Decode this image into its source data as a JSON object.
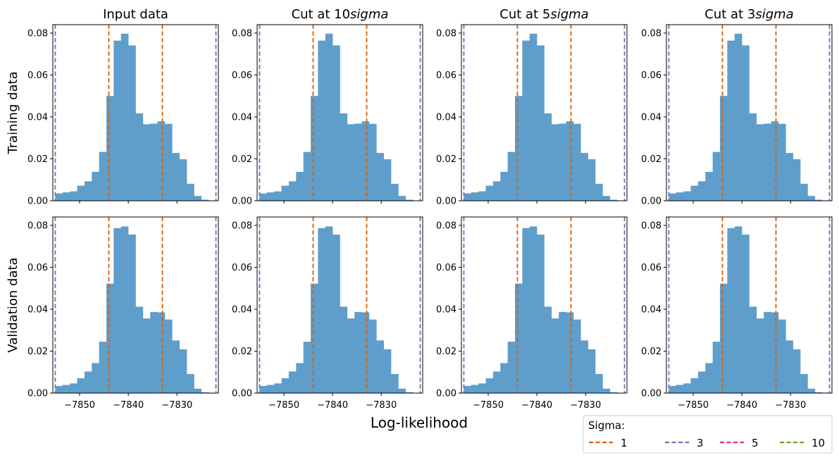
{
  "chart_data": {
    "type": "bar",
    "titles": [
      "Input data",
      "Cut at 10",
      "Cut at 5",
      "Cut at 3"
    ],
    "title_suffix": "sigma",
    "row_labels": [
      "Training data",
      "Validation data"
    ],
    "xlabel": "Log-likelihood",
    "xlim": [
      -7855.5,
      -7821.5
    ],
    "ylim": [
      0,
      0.084
    ],
    "xticks": [
      -7850,
      -7840,
      -7830
    ],
    "xtick_labels": [
      "−7850",
      "−7840",
      "−7830"
    ],
    "yticks": [
      0,
      0.02,
      0.04,
      0.06,
      0.08
    ],
    "ytick_labels": [
      "0.00",
      "0.02",
      "0.04",
      "0.06",
      "0.08"
    ],
    "bar_color": "#5f9ecb",
    "bin_edges": [
      -7855.0,
      -7853.5,
      -7852.0,
      -7850.5,
      -7849.0,
      -7847.5,
      -7846.0,
      -7844.5,
      -7843.0,
      -7841.5,
      -7840.0,
      -7838.5,
      -7837.0,
      -7835.5,
      -7834.0,
      -7832.5,
      -7831.0,
      -7829.5,
      -7828.0,
      -7826.5,
      -7825.0,
      -7823.5
    ],
    "series": [
      {
        "values": [
          0.0035,
          0.004,
          0.0045,
          0.0072,
          0.0093,
          0.0138,
          0.0233,
          0.05,
          0.0764,
          0.0797,
          0.0741,
          0.0417,
          0.0365,
          0.0368,
          0.0379,
          0.0367,
          0.0228,
          0.0198,
          0.0081,
          0.0023,
          0.0005
        ]
      },
      {
        "values": [
          0.0034,
          0.0039,
          0.0046,
          0.0071,
          0.0103,
          0.0143,
          0.0245,
          0.0522,
          0.0787,
          0.0795,
          0.0756,
          0.0412,
          0.0356,
          0.0387,
          0.0385,
          0.0351,
          0.0251,
          0.0209,
          0.0091,
          0.0021,
          0.0004
        ]
      }
    ],
    "vlines": [
      {
        "sigma": "1",
        "x": -7844,
        "color": "#d95f02"
      },
      {
        "sigma": "1",
        "x": -7833,
        "color": "#d95f02"
      },
      {
        "sigma": "3",
        "x": -7855,
        "color": "#7570b3"
      },
      {
        "sigma": "3",
        "x": -7822,
        "color": "#7570b3"
      }
    ],
    "legend": {
      "title": "Sigma:",
      "placement": "bottom-right",
      "entries": [
        {
          "label": "1",
          "color": "#d95f02"
        },
        {
          "label": "3",
          "color": "#7570b3"
        },
        {
          "label": "5",
          "color": "#e7298a"
        },
        {
          "label": "10",
          "color": "#66a61e"
        }
      ]
    }
  }
}
